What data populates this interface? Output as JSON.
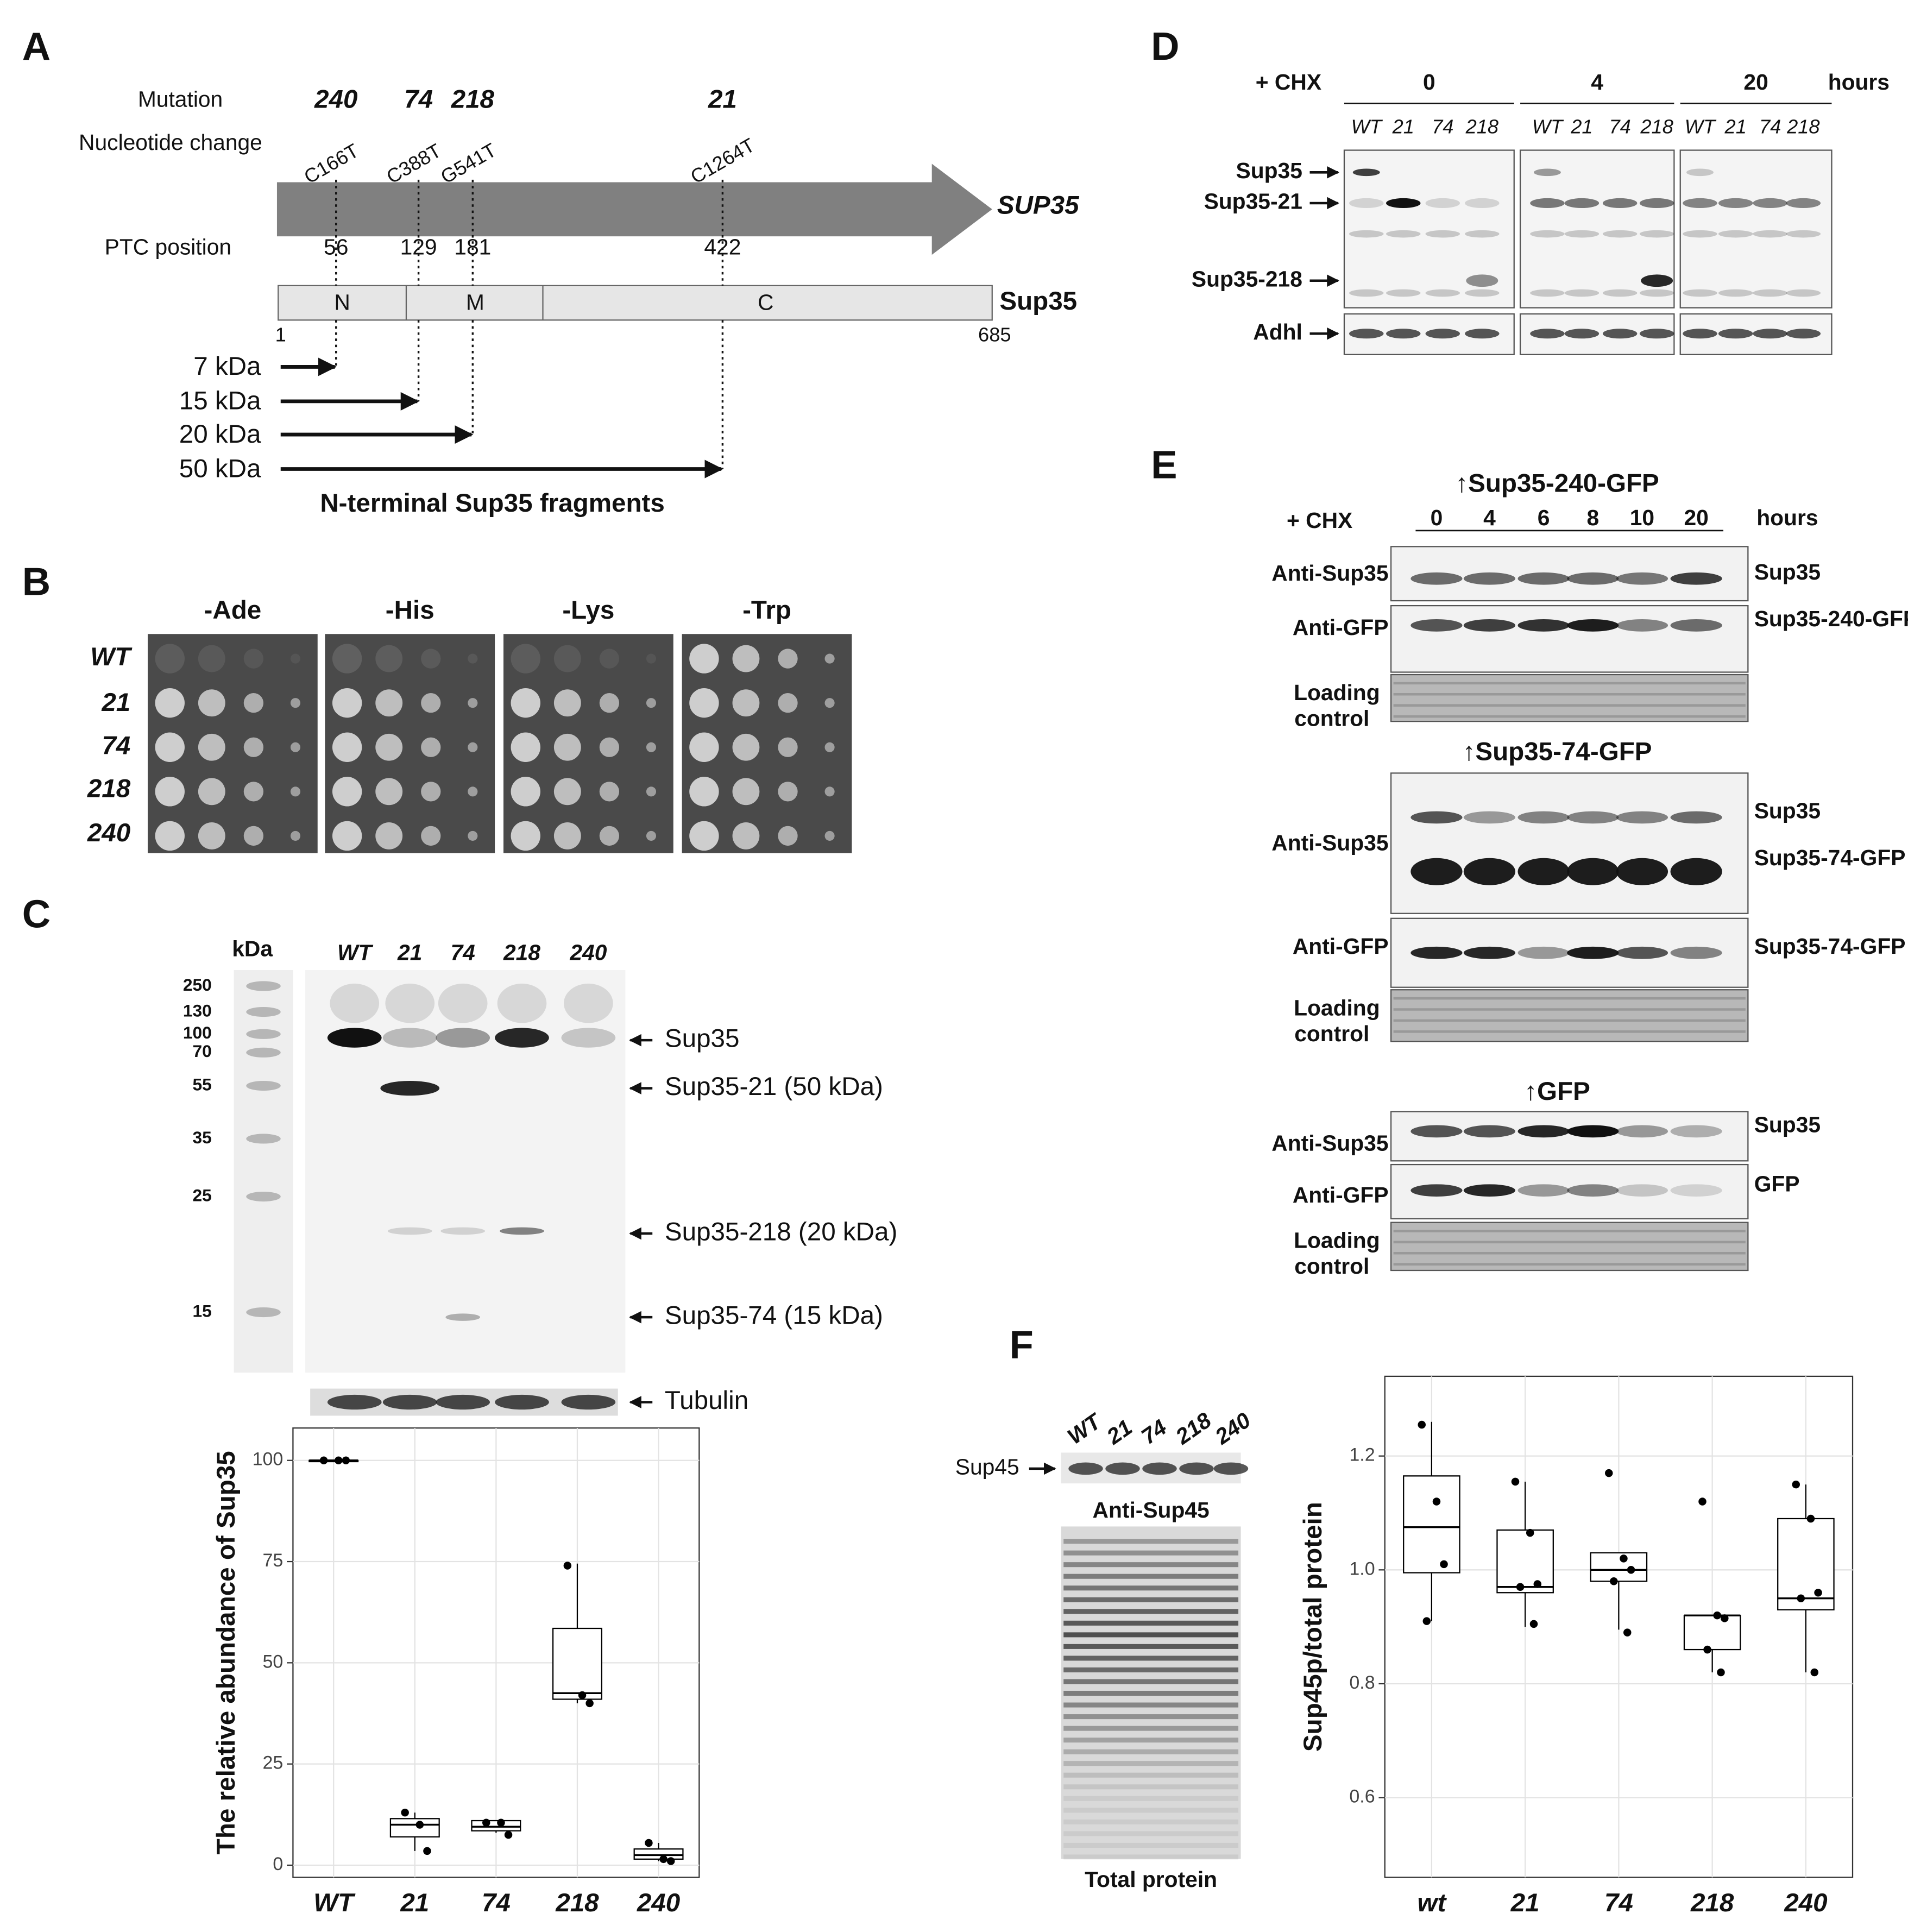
{
  "panel_a": {
    "label": "A",
    "mutation_label": "Mutation",
    "mutations": [
      "240",
      "74",
      "218",
      "21"
    ],
    "nucleotide_label": "Nucleotide change",
    "nucleotide_changes": [
      "C166T",
      "C388T",
      "G541T",
      "C1264T"
    ],
    "gene": "SUP35",
    "ptc_label": "PTC position",
    "ptc_positions": [
      56,
      129,
      181,
      422
    ],
    "protein": "Sup35",
    "domains": [
      "N",
      "M",
      "C"
    ],
    "start": 1,
    "end": 685,
    "fragments": [
      "7 kDa",
      "15 kDa",
      "20 kDa",
      "50 kDa"
    ],
    "caption": "N-terminal Sup35 fragments"
  },
  "panel_b": {
    "label": "B",
    "media": [
      "-Ade",
      "-His",
      "-Lys",
      "-Trp"
    ],
    "strains": [
      "WT",
      "21",
      "74",
      "218",
      "240"
    ]
  },
  "panel_c": {
    "label": "C",
    "kda_label": "kDa",
    "ladder": [
      250,
      130,
      100,
      70,
      55,
      35,
      25,
      15
    ],
    "lanes": [
      "WT",
      "21",
      "74",
      "218",
      "240"
    ],
    "bands": [
      "Sup35",
      "Sup35-21 (50 kDa)",
      "Sup35-218 (20 kDa)",
      "Sup35-74 (15 kDa)"
    ],
    "loading": "Tubulin"
  },
  "panel_d": {
    "label": "D",
    "treatment": "+ CHX",
    "times": [
      0,
      4,
      20
    ],
    "unit": "hours",
    "lanes": [
      "WT",
      "21",
      "74",
      "218"
    ],
    "bands": [
      "Sup35",
      "Sup35-21",
      "Sup35-218",
      "Adhl"
    ]
  },
  "panel_e": {
    "label": "E",
    "treatment": "+ CHX",
    "times": [
      0,
      4,
      6,
      8,
      10,
      20
    ],
    "unit": "hours",
    "blocks": [
      {
        "title": "↑Sup35-240-GFP",
        "rows": [
          "Anti-Sup35",
          "Anti-GFP"
        ],
        "loading": [
          "Loading",
          "control"
        ],
        "bands": [
          "Sup35",
          "Sup35-240-GFP"
        ]
      },
      {
        "title": "↑Sup35-74-GFP",
        "rows": [
          "Anti-Sup35",
          "Anti-GFP"
        ],
        "loading": [
          "Loading",
          "control"
        ],
        "bands": [
          "Sup35",
          "Sup35-74-GFP",
          "Sup35-74-GFP"
        ]
      },
      {
        "title": "↑GFP",
        "rows": [
          "Anti-Sup35",
          "Anti-GFP"
        ],
        "loading": [
          "Loading",
          "control"
        ],
        "bands": [
          "Sup35",
          "GFP"
        ]
      }
    ]
  },
  "panel_f": {
    "label": "F",
    "lanes": [
      "WT",
      "21",
      "74",
      "218",
      "240"
    ],
    "band": "Sup45",
    "antibody": "Anti-Sup45",
    "gel": "Total protein"
  },
  "chart_data": [
    {
      "type": "box",
      "ylabel": "The relative abundance of Sup35",
      "categories": [
        "WT",
        "21",
        "74",
        "218",
        "240"
      ],
      "ylim": [
        -3,
        108
      ],
      "yticks": [
        0,
        25,
        50,
        75,
        100
      ],
      "grid": true,
      "color": "#000000",
      "boxes": [
        {
          "min": 100,
          "q1": 100,
          "median": 100,
          "q3": 100,
          "max": 100,
          "points": [
            100,
            100,
            100
          ]
        },
        {
          "min": 3.5,
          "q1": 7,
          "median": 10,
          "q3": 11.5,
          "max": 13,
          "points": [
            13,
            10,
            3.5
          ]
        },
        {
          "min": 8,
          "q1": 8.5,
          "median": 9.5,
          "q3": 11,
          "max": 11,
          "points": [
            10.5,
            10.5,
            7.5
          ]
        },
        {
          "min": 40,
          "q1": 41,
          "median": 42.5,
          "q3": 58.5,
          "max": 74.5,
          "points": [
            74,
            42,
            40
          ]
        },
        {
          "min": 1,
          "q1": 1.5,
          "median": 2.5,
          "q3": 4,
          "max": 5.5,
          "points": [
            5.5,
            1.5,
            1
          ]
        }
      ]
    },
    {
      "type": "box",
      "ylabel": "Sup45p/total protein",
      "categories": [
        "wt",
        "21",
        "74",
        "218",
        "240"
      ],
      "ylim": [
        0.46,
        1.34
      ],
      "yticks": [
        0.6,
        0.8,
        {
          "value": 1,
          "label": "1.0"
        },
        1.2
      ],
      "grid": true,
      "color": "#000000",
      "boxes": [
        {
          "min": 0.91,
          "q1": 0.995,
          "median": 1.075,
          "q3": 1.165,
          "max": 1.26,
          "points": [
            1.255,
            1.12,
            1.01,
            0.91
          ]
        },
        {
          "min": 0.9,
          "q1": 0.96,
          "median": 0.97,
          "q3": 1.07,
          "max": 1.155,
          "points": [
            1.155,
            1.065,
            0.975,
            0.97,
            0.905
          ]
        },
        {
          "min": 0.895,
          "q1": 0.98,
          "median": 1,
          "q3": 1.03,
          "max": 1.03,
          "points": [
            1.17,
            1.02,
            1,
            0.98,
            0.89
          ]
        },
        {
          "min": 0.82,
          "q1": 0.86,
          "median": 0.92,
          "q3": 0.92,
          "max": 0.92,
          "points": [
            1.12,
            0.92,
            0.915,
            0.86,
            0.82
          ]
        },
        {
          "min": 0.82,
          "q1": 0.93,
          "median": 0.95,
          "q3": 1.09,
          "max": 1.15,
          "points": [
            1.15,
            1.09,
            0.96,
            0.95,
            0.82
          ]
        }
      ]
    }
  ]
}
